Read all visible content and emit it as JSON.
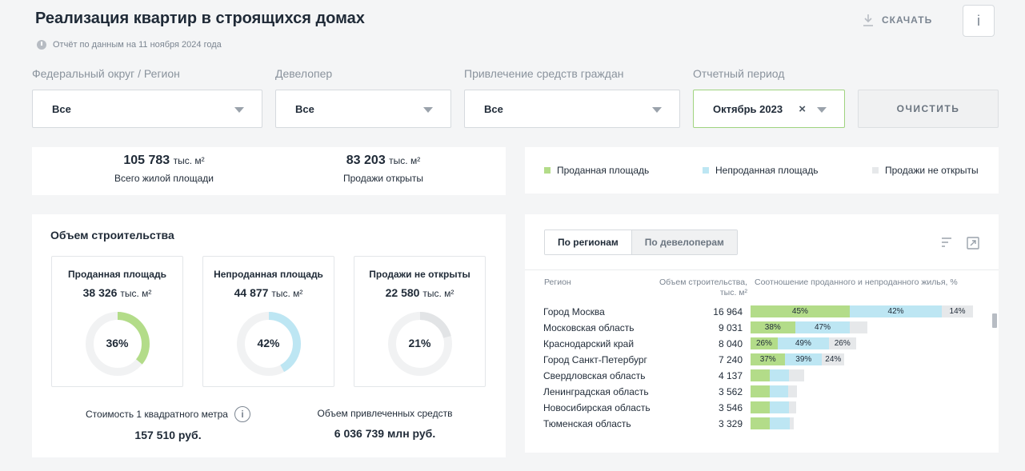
{
  "header": {
    "title": "Реализация квартир в строящихся домах",
    "subtitle": "Отчёт по данным на 11 ноября 2024 года",
    "download_label": "СКАЧАТЬ",
    "info_label": "i"
  },
  "filters": {
    "region": {
      "label": "Федеральный округ / Регион",
      "value": "Все"
    },
    "developer": {
      "label": "Девелопер",
      "value": "Все"
    },
    "funding": {
      "label": "Привлечение средств граждан",
      "value": "Все"
    },
    "period": {
      "label": "Отчетный период",
      "value": "Октябрь 2023",
      "clear_glyph": "×"
    },
    "clear_label": "ОЧИСТИТЬ"
  },
  "kpis": {
    "total": {
      "value": "105 783",
      "unit": "тыс. м²",
      "label": "Всего жилой площади"
    },
    "opened": {
      "value": "83 203",
      "unit": "тыс. м²",
      "label": "Продажи открыты"
    }
  },
  "legend": {
    "sold": "Проданная площадь",
    "unsold": "Непроданная площадь",
    "not_open": "Продажи не открыты"
  },
  "colors": {
    "sold": "#b3dc89",
    "unsold": "#bde6f3",
    "not_open": "#e6e8ea",
    "donut_track": "#f1f2f3"
  },
  "volume": {
    "title": "Объем строительства",
    "boxes": [
      {
        "title": "Проданная площадь",
        "value": "38 326",
        "unit": "тыс. м²",
        "pct_label": "36%",
        "pct": 36,
        "color": "#b3dc89"
      },
      {
        "title": "Непроданная площадь",
        "value": "44 877",
        "unit": "тыс. м²",
        "pct_label": "42%",
        "pct": 42,
        "color": "#bde6f3"
      },
      {
        "title": "Продажи не открыты",
        "value": "22 580",
        "unit": "тыс. м²",
        "pct_label": "21%",
        "pct": 21,
        "color": "#e2e4e6"
      }
    ],
    "cost_label": "Стоимость 1 квадратного метра",
    "cost_value": "157 510 руб.",
    "funds_label": "Объем привлеченных средств",
    "funds_value": "6 036 739 млн руб."
  },
  "table": {
    "tabs": [
      "По регионам",
      "По девелоперам"
    ],
    "col_region": "Регион",
    "col_volume_1": "Объем строительства,",
    "col_volume_2": "тыс. м²",
    "col_ratio": "Соотношение проданного и непроданного жилья, %",
    "rows": [
      {
        "name": "Город Москва",
        "volume": "16 964",
        "vol": 16964,
        "sold": 45,
        "unsold": 42,
        "closed": 14,
        "sold_label": "45%",
        "unsold_label": "42%",
        "closed_label": "14%"
      },
      {
        "name": "Московская область",
        "volume": "9 031",
        "vol": 9031,
        "sold": 38,
        "unsold": 47,
        "closed": 15,
        "sold_label": "38%",
        "unsold_label": "47%",
        "closed_label": ""
      },
      {
        "name": "Краснодарский край",
        "volume": "8 040",
        "vol": 8040,
        "sold": 26,
        "unsold": 49,
        "closed": 26,
        "sold_label": "26%",
        "unsold_label": "49%",
        "closed_label": "26%"
      },
      {
        "name": "Город Санкт-Петербург",
        "volume": "7 240",
        "vol": 7240,
        "sold": 37,
        "unsold": 39,
        "closed": 24,
        "sold_label": "37%",
        "unsold_label": "39%",
        "closed_label": "24%"
      },
      {
        "name": "Свердловская область",
        "volume": "4 137",
        "vol": 4137,
        "sold": 36,
        "unsold": 36,
        "closed": 28,
        "sold_label": "",
        "unsold_label": "",
        "closed_label": ""
      },
      {
        "name": "Ленинградская область",
        "volume": "3 562",
        "vol": 3562,
        "sold": 41,
        "unsold": 41,
        "closed": 18,
        "sold_label": "",
        "unsold_label": "",
        "closed_label": ""
      },
      {
        "name": "Новосибирская область",
        "volume": "3 546",
        "vol": 3546,
        "sold": 42,
        "unsold": 41,
        "closed": 17,
        "sold_label": "",
        "unsold_label": "",
        "closed_label": ""
      },
      {
        "name": "Тюменская область",
        "volume": "3 329",
        "vol": 3329,
        "sold": 45,
        "unsold": 45,
        "closed": 10,
        "sold_label": "",
        "unsold_label": "",
        "closed_label": ""
      }
    ]
  }
}
